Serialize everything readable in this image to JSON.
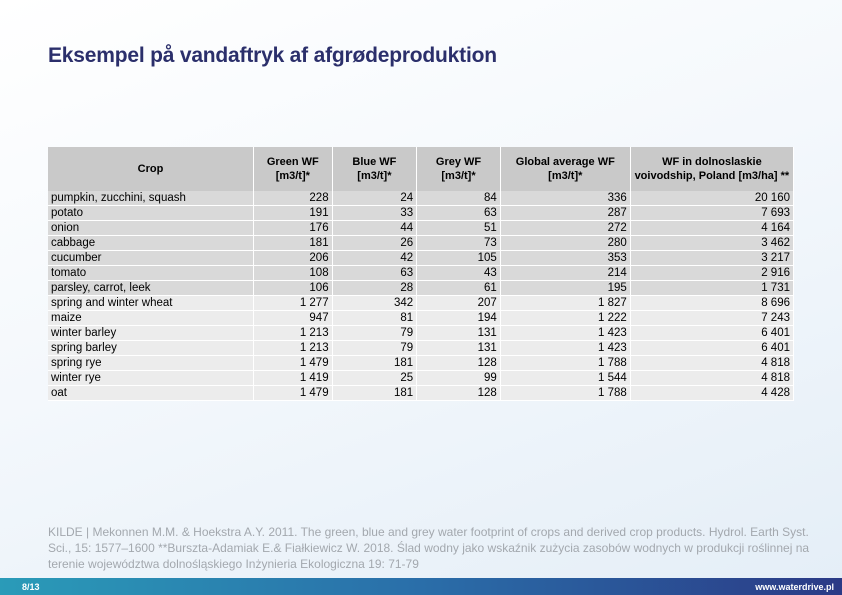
{
  "header": {
    "title": "Eksempel på vandaftryk af afgrødeproduktion"
  },
  "table": {
    "columns": [
      "Crop",
      "Green WF\n[m3/t]*",
      "Blue WF\n[m3/t]*",
      "Grey WF\n[m3/t]*",
      "Global average WF\n[m3/t]*",
      "WF in  dolnoslaskie voivodship, Poland [m3/ha] **"
    ],
    "rows": [
      [
        "pumpkin, zucchini, squash",
        "228",
        "24",
        "84",
        "336",
        "20 160"
      ],
      [
        "potato",
        "191",
        "33",
        "63",
        "287",
        "7 693"
      ],
      [
        "onion",
        "176",
        "44",
        "51",
        "272",
        "4 164"
      ],
      [
        "cabbage",
        "181",
        "26",
        "73",
        "280",
        "3 462"
      ],
      [
        "cucumber",
        "206",
        "42",
        "105",
        "353",
        "3 217"
      ],
      [
        "tomato",
        "108",
        "63",
        "43",
        "214",
        "2 916"
      ],
      [
        "parsley, carrot, leek",
        "106",
        "28",
        "61",
        "195",
        "1 731"
      ],
      [
        "spring and winter wheat",
        "1 277",
        "342",
        "207",
        "1 827",
        "8 696"
      ],
      [
        "maize",
        "947",
        "81",
        "194",
        "1 222",
        "7 243"
      ],
      [
        "winter barley",
        "1 213",
        "79",
        "131",
        "1 423",
        "6 401"
      ],
      [
        "spring barley",
        "1 213",
        "79",
        "131",
        "1 423",
        "6 401"
      ],
      [
        "spring rye",
        "1 479",
        "181",
        "128",
        "1 788",
        "4 818"
      ],
      [
        "winter rye",
        "1 419",
        "25",
        "99",
        "1 544",
        "4 818"
      ],
      [
        "oat",
        "1 479",
        "181",
        "128",
        "1 788",
        "4 428"
      ]
    ]
  },
  "source": "KILDE | Mekonnen M.M. & Hoekstra A.Y. 2011. The green, blue and grey water footprint of crops and derived crop products. Hydrol. Earth Syst. Sci., 15: 1577–1600 **Burszta-Adamiak E.& Fiałkiewicz W. 2018. Ślad wodny jako wskaźnik zużycia zasobów wodnych w produkcji roślinnej na terenie województwa dolnośląskiego  Inżynieria Ekologiczna 19: 71-79",
  "footer": {
    "page": "8/13",
    "url": "www.waterdrive.pl"
  }
}
